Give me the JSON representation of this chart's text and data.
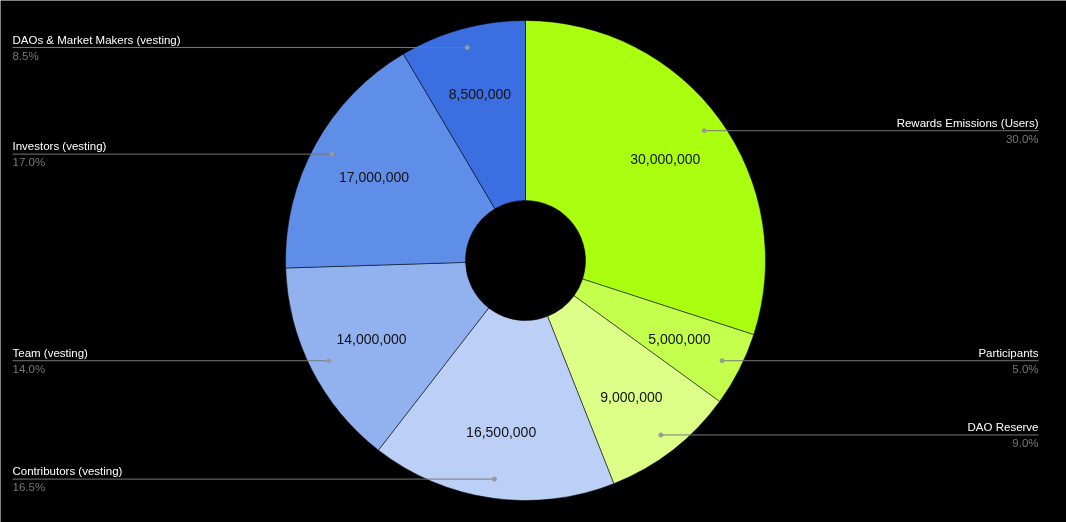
{
  "chart_data": {
    "type": "donut",
    "categories": [
      "Rewards Emissions (Users)",
      "Participants",
      "DAO Reserve",
      "Contributors (vesting)",
      "Team (vesting)",
      "Investors (vesting)",
      "DAOs & Market Makers (vesting)"
    ],
    "values": [
      30000000,
      5000000,
      9000000,
      16500000,
      14000000,
      17000000,
      8500000
    ],
    "value_labels": [
      "30,000,000",
      "5,000,000",
      "9,000,000",
      "16,500,000",
      "14,000,000",
      "17,000,000",
      "8,500,000"
    ],
    "colors": [
      "#aaff11",
      "#c4ff4d",
      "#ddff88",
      "#bcd0f7",
      "#92b2ef",
      "#5f8ee8",
      "#3b6ee0"
    ],
    "annotations": [
      "30.0%",
      "5.0%",
      "9.0%",
      "16.5%",
      "14.0%",
      "17.0%",
      "8.5%"
    ]
  }
}
